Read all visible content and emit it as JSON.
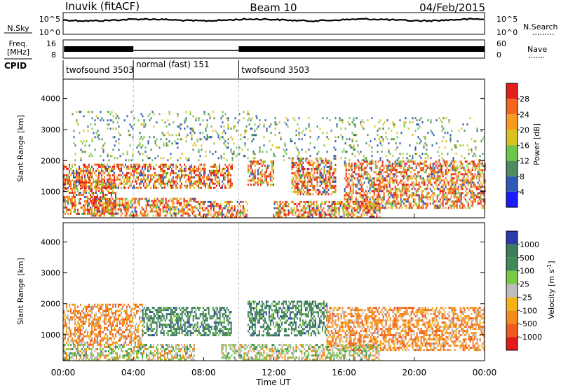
{
  "header": {
    "station": "Inuvik (fitACF)",
    "beam": "Beam 10",
    "date": "04/Feb/2015"
  },
  "top_panels": {
    "nsky_label": "N.Sky",
    "nsky_ticks": [
      "10^5",
      "10^0"
    ],
    "nsearch_label": "N.Search",
    "nsearch_ticks": [
      "10^5",
      "10^0"
    ],
    "freq_label_1": "Freq.",
    "freq_label_2": "[MHz]",
    "freq_ticks": [
      "16",
      "8"
    ],
    "nave_label": "Nave",
    "nave_ticks": [
      "60",
      "0"
    ],
    "cpid_label": "CPID",
    "cpid_segments": [
      {
        "label": "twofsound 3503",
        "start_hr": 0,
        "end_hr": 4
      },
      {
        "label": "normal (fast) 151",
        "start_hr": 4,
        "end_hr": 10
      },
      {
        "label": "twofsound 3503",
        "start_hr": 10,
        "end_hr": 24
      }
    ]
  },
  "x_axis": {
    "label": "Time UT",
    "ticks": [
      "00:00",
      "04:00",
      "08:00",
      "12:00",
      "16:00",
      "20:00",
      "00:00"
    ]
  },
  "chart_data": [
    {
      "type": "heatmap",
      "title": "Power",
      "ylabel": "Slant Range [km]",
      "yticks": [
        "1000",
        "2000",
        "3000",
        "4000"
      ],
      "ylim": [
        180,
        4600
      ],
      "xlim_hours": [
        0,
        24
      ],
      "colorbar": {
        "label": "Power [dB]",
        "ticks": [
          "4",
          "8",
          "12",
          "16",
          "20",
          "24",
          "28"
        ],
        "colors": [
          "#1a1aff",
          "#2b59b5",
          "#4f8a60",
          "#6cc84a",
          "#d8c21e",
          "#f79a1f",
          "#f3661e",
          "#e5201a"
        ]
      },
      "echo_regions": [
        {
          "start_hr": 0.0,
          "end_hr": 9.6,
          "range_min_km": 1100,
          "range_max_km": 1900,
          "dominant": "high"
        },
        {
          "start_hr": 0.0,
          "end_hr": 3.0,
          "range_min_km": 250,
          "range_max_km": 1400,
          "dominant": "high"
        },
        {
          "start_hr": 1.5,
          "end_hr": 7.5,
          "range_min_km": 250,
          "range_max_km": 800,
          "dominant": "high"
        },
        {
          "start_hr": 7.5,
          "end_hr": 10.5,
          "range_min_km": 200,
          "range_max_km": 700,
          "dominant": "high"
        },
        {
          "start_hr": 10.5,
          "end_hr": 12.0,
          "range_min_km": 1200,
          "range_max_km": 2000,
          "dominant": "high"
        },
        {
          "start_hr": 13.0,
          "end_hr": 15.5,
          "range_min_km": 900,
          "range_max_km": 2100,
          "dominant": "high"
        },
        {
          "start_hr": 12.0,
          "end_hr": 18.0,
          "range_min_km": 200,
          "range_max_km": 700,
          "dominant": "high"
        },
        {
          "start_hr": 16.0,
          "end_hr": 24.0,
          "range_min_km": 500,
          "range_max_km": 2000,
          "dominant": "high"
        },
        {
          "start_hr": 0.5,
          "end_hr": 11.0,
          "range_min_km": 2000,
          "range_max_km": 3600,
          "dominant": "low"
        },
        {
          "start_hr": 11.0,
          "end_hr": 24.0,
          "range_min_km": 2000,
          "range_max_km": 3400,
          "dominant": "low"
        }
      ]
    },
    {
      "type": "heatmap",
      "title": "Velocity",
      "ylabel": "Slant Range [km]",
      "yticks": [
        "1000",
        "2000",
        "3000",
        "4000"
      ],
      "ylim": [
        180,
        4600
      ],
      "xlim_hours": [
        0,
        24
      ],
      "colorbar": {
        "label": "Velocity [m s^-1]",
        "ticks": [
          "1000",
          "500",
          "100",
          "25",
          "-25",
          "-100",
          "-500",
          "-1000"
        ],
        "colors": [
          "#2a3aa8",
          "#3e7d5b",
          "#3f8a5a",
          "#7ac943",
          "#bdbdbd",
          "#f5b315",
          "#f38a1c",
          "#f05a1c",
          "#e31a1a"
        ]
      },
      "echo_regions": [
        {
          "start_hr": 0.0,
          "end_hr": 4.5,
          "range_min_km": 700,
          "range_max_km": 2000,
          "dominant": "away"
        },
        {
          "start_hr": 4.5,
          "end_hr": 9.6,
          "range_min_km": 1000,
          "range_max_km": 1900,
          "dominant": "toward"
        },
        {
          "start_hr": 0.0,
          "end_hr": 7.5,
          "range_min_km": 200,
          "range_max_km": 700,
          "dominant": "mixed"
        },
        {
          "start_hr": 10.5,
          "end_hr": 15.0,
          "range_min_km": 1000,
          "range_max_km": 2100,
          "dominant": "toward"
        },
        {
          "start_hr": 15.0,
          "end_hr": 24.0,
          "range_min_km": 500,
          "range_max_km": 1900,
          "dominant": "away"
        },
        {
          "start_hr": 9.0,
          "end_hr": 18.0,
          "range_min_km": 200,
          "range_max_km": 700,
          "dominant": "mixed"
        }
      ]
    }
  ]
}
